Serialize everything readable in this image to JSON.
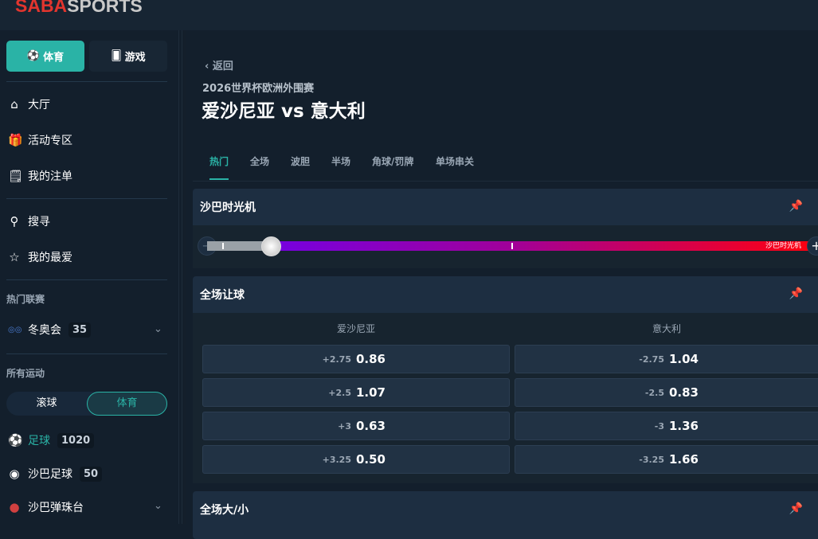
{
  "brand": {
    "part1": "SABA",
    "part2": "SPORTS"
  },
  "sidebar": {
    "segments": [
      {
        "label": "体育",
        "icon": "soccer-ball-icon",
        "active": true
      },
      {
        "label": "游戏",
        "icon": "cards-icon"
      }
    ],
    "nav": [
      {
        "label": "大厅",
        "icon": "home-icon"
      },
      {
        "label": "活动专区",
        "icon": "gift-icon"
      },
      {
        "label": "我的注单",
        "icon": "receipt-icon"
      },
      {
        "label": "搜寻",
        "icon": "search-icon"
      },
      {
        "label": "我的最爱",
        "icon": "star-icon"
      }
    ],
    "hot_title": "热门联赛",
    "hot": [
      {
        "label": "冬奥会",
        "count": "35",
        "icon": "olympics-icon"
      }
    ],
    "all_title": "所有运动",
    "toggle": [
      "滚球",
      "体育"
    ],
    "sports": [
      {
        "label": "足球",
        "count": "1020",
        "active": true,
        "icon": "soccer-icon"
      },
      {
        "label": "沙巴足球",
        "count": "50",
        "icon": "saba-soccer-icon"
      },
      {
        "label": "沙巴弹珠台",
        "count": "",
        "icon": "pinball-icon"
      }
    ]
  },
  "main": {
    "back": "返回",
    "league": "2026世界杯欧洲外围赛",
    "match": "爱沙尼亚 vs 意大利",
    "tabs": [
      "热门",
      "全场",
      "波胆",
      "半场",
      "角球/罚牌",
      "单场串关"
    ],
    "active_tab": 0,
    "time_machine": {
      "title": "沙巴时光机",
      "label": "沙巴时光机",
      "slider_position_percent": 12
    },
    "handicap": {
      "title": "全场让球",
      "home": "爱沙尼亚",
      "away": "意大利",
      "rows": [
        {
          "hh": "+2.75",
          "ho": "0.86",
          "ah": "-2.75",
          "ao": "1.04"
        },
        {
          "hh": "+2.5",
          "ho": "1.07",
          "ah": "-2.5",
          "ao": "0.83"
        },
        {
          "hh": "+3",
          "ho": "0.63",
          "ah": "-3",
          "ao": "1.36"
        },
        {
          "hh": "+3.25",
          "ho": "0.50",
          "ah": "-3.25",
          "ao": "1.66"
        }
      ]
    },
    "ou": {
      "title": "全场大/小"
    }
  },
  "colors": {
    "accent": "#2ab3a6",
    "gradient": [
      "#6a00f4",
      "#ff0010"
    ]
  }
}
